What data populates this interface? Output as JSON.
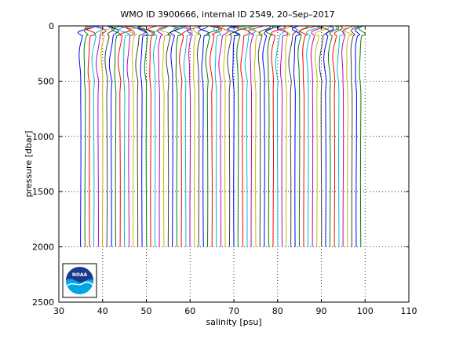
{
  "chart_data": {
    "type": "line",
    "title": "WMO ID 3900666, internal ID 2549, 20–Sep–2017",
    "xlabel": "salinity [psu]",
    "ylabel": "pressure [dbar]",
    "xlim": [
      30,
      110
    ],
    "ylim": [
      0,
      2500
    ],
    "y_reversed": true,
    "grid": true,
    "x_ticks": [
      30,
      40,
      50,
      60,
      70,
      80,
      90,
      100,
      110
    ],
    "y_ticks": [
      0,
      500,
      1000,
      1500,
      2000,
      2500
    ],
    "series_description": "Waterfall of 65 salinity profiles; each successive profile offset by +1 psu",
    "profile_count": 65,
    "first_profile_salinity": 35,
    "offset_per_profile": 1,
    "max_pressure": 2000,
    "series_colors": [
      "#0000ff",
      "#008000",
      "#ff0000",
      "#00bfbf",
      "#bf00bf",
      "#bfbf00",
      "#404040"
    ]
  },
  "logo": {
    "label": "NOAA",
    "color_dark": "#1a3a8c",
    "color_light": "#00a6e6"
  }
}
